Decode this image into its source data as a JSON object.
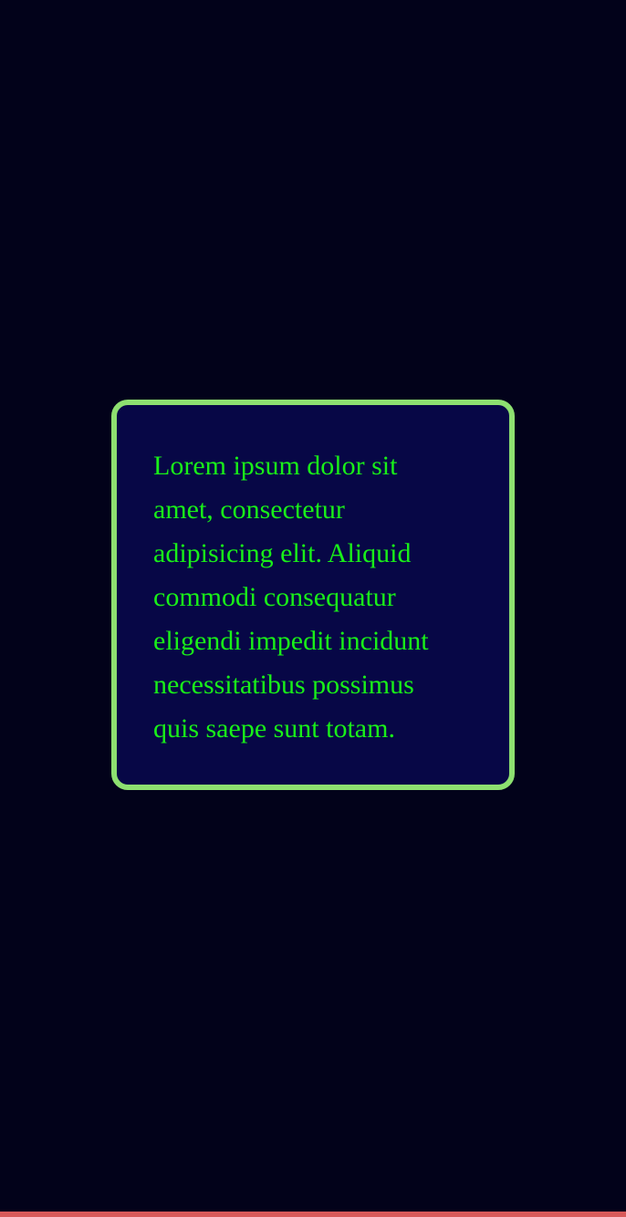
{
  "card": {
    "text": "Lorem ipsum dolor sit amet, consectetur adipisicing elit. Aliquid commodi consequatur eligendi impedit incidunt necessitatibus possimus quis saepe sunt totam."
  },
  "colors": {
    "background": "#02021a",
    "card_background": "#070746",
    "card_border": "#8de070",
    "text": "#19ef19",
    "bottom_bar": "#d85a5a"
  }
}
